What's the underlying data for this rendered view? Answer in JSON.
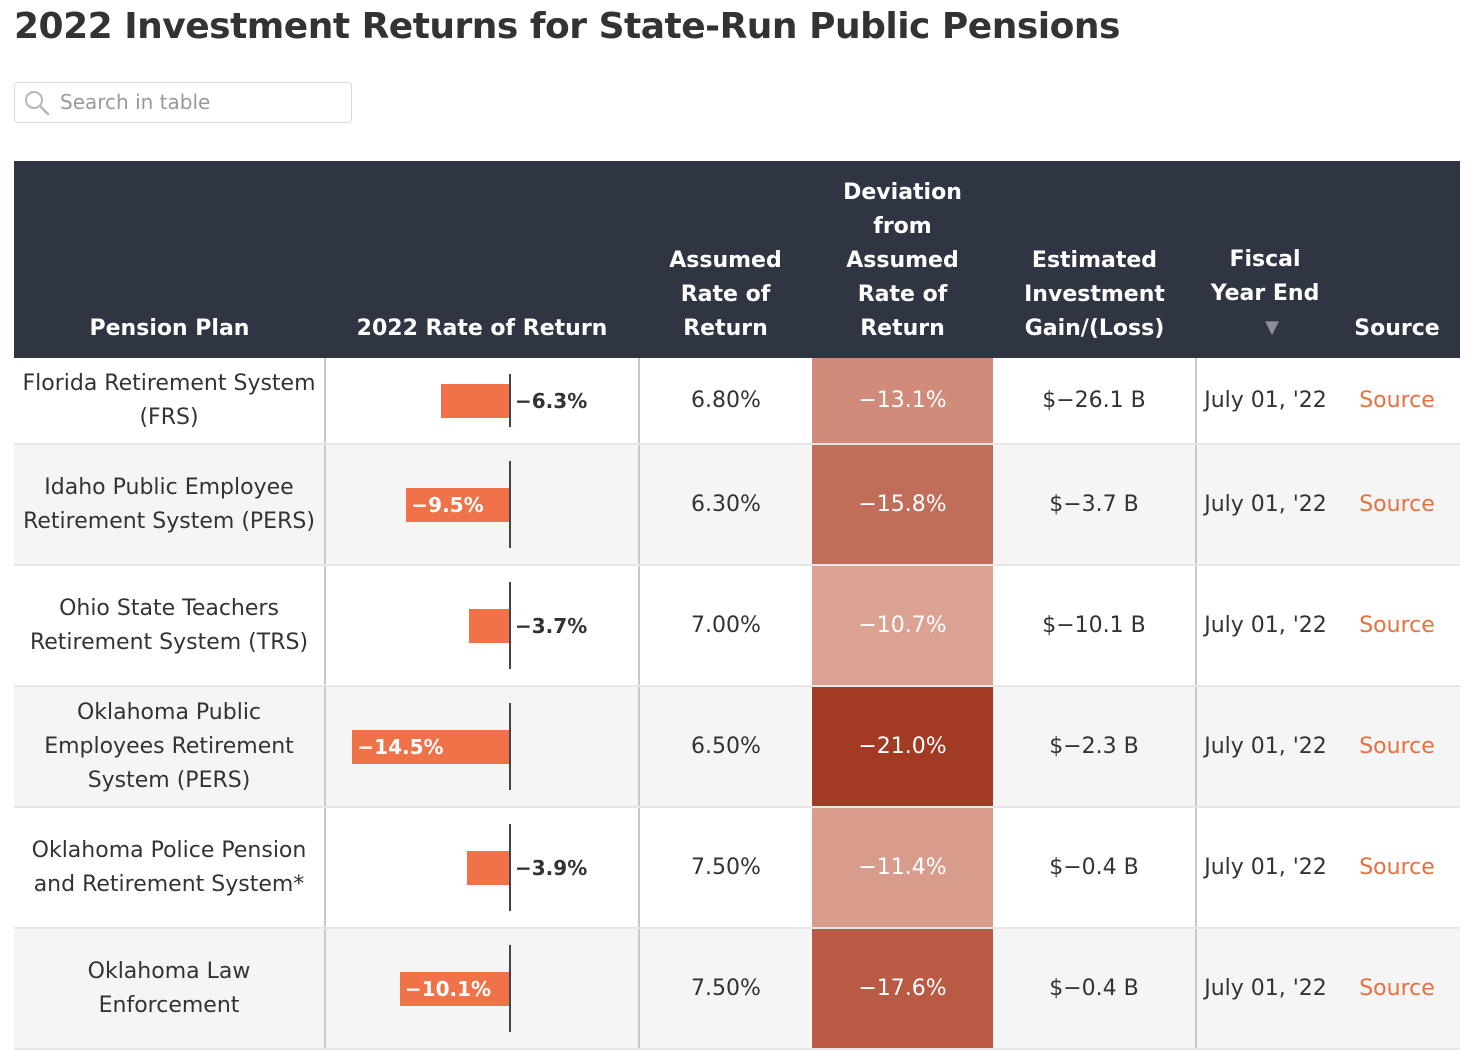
{
  "title": "2022 Investment Returns for State-Run Public Pensions",
  "search": {
    "placeholder": "Search in table"
  },
  "columns": {
    "plan": "Pension Plan",
    "rate": "2022 Rate of Return",
    "assumed": "Assumed Rate of Return",
    "deviation": "Deviation from Assumed Rate of Return",
    "gain": "Estimated Investment Gain/(Loss)",
    "fiscal": "Fiscal Year End",
    "source": "Source"
  },
  "sort": {
    "column": "fiscal",
    "direction": "descending",
    "arrow": "▼"
  },
  "bar_scale": {
    "min": -16,
    "max": 0
  },
  "colors": {
    "header_bg": "#2f3542",
    "bar": "#f07248",
    "link": "#e8703e",
    "deviation_light": "#daa293",
    "deviation_dark": "#a33a24"
  },
  "rows": [
    {
      "plan": "Florida Retirement System (FRS)",
      "rate": -6.3,
      "rate_label": "−6.3%",
      "assumed": "6.80%",
      "deviation": "−13.1%",
      "deviation_color": "#d18b7a",
      "gain": "$−26.1 B",
      "fiscal": "July 01, '22",
      "source": "Source"
    },
    {
      "plan": "Idaho Public Employee Retirement System (PERS)",
      "rate": -9.5,
      "rate_label": "−9.5%",
      "assumed": "6.30%",
      "deviation": "−15.8%",
      "deviation_color": "#c06e5a",
      "gain": "$−3.7 B",
      "fiscal": "July 01, '22",
      "source": "Source"
    },
    {
      "plan": "Ohio State Teachers Retirement System (TRS)",
      "rate": -3.7,
      "rate_label": "−3.7%",
      "assumed": "7.00%",
      "deviation": "−10.7%",
      "deviation_color": "#dba294",
      "gain": "$−10.1 B",
      "fiscal": "July 01, '22",
      "source": "Source"
    },
    {
      "plan": "Oklahoma Public Employees Retirement System (PERS)",
      "rate": -14.5,
      "rate_label": "−14.5%",
      "assumed": "6.50%",
      "deviation": "−21.0%",
      "deviation_color": "#a33a24",
      "gain": "$−2.3 B",
      "fiscal": "July 01, '22",
      "source": "Source"
    },
    {
      "plan": "Oklahoma Police Pension and Retirement System*",
      "rate": -3.9,
      "rate_label": "−3.9%",
      "assumed": "7.50%",
      "deviation": "−11.4%",
      "deviation_color": "#d89c8d",
      "gain": "$−0.4 B",
      "fiscal": "July 01, '22",
      "source": "Source"
    },
    {
      "plan": "Oklahoma Law Enforcement",
      "rate": -10.1,
      "rate_label": "−10.1%",
      "assumed": "7.50%",
      "deviation": "−17.6%",
      "deviation_color": "#b95a44",
      "gain": "$−0.4 B",
      "fiscal": "July 01, '22",
      "source": "Source"
    }
  ]
}
